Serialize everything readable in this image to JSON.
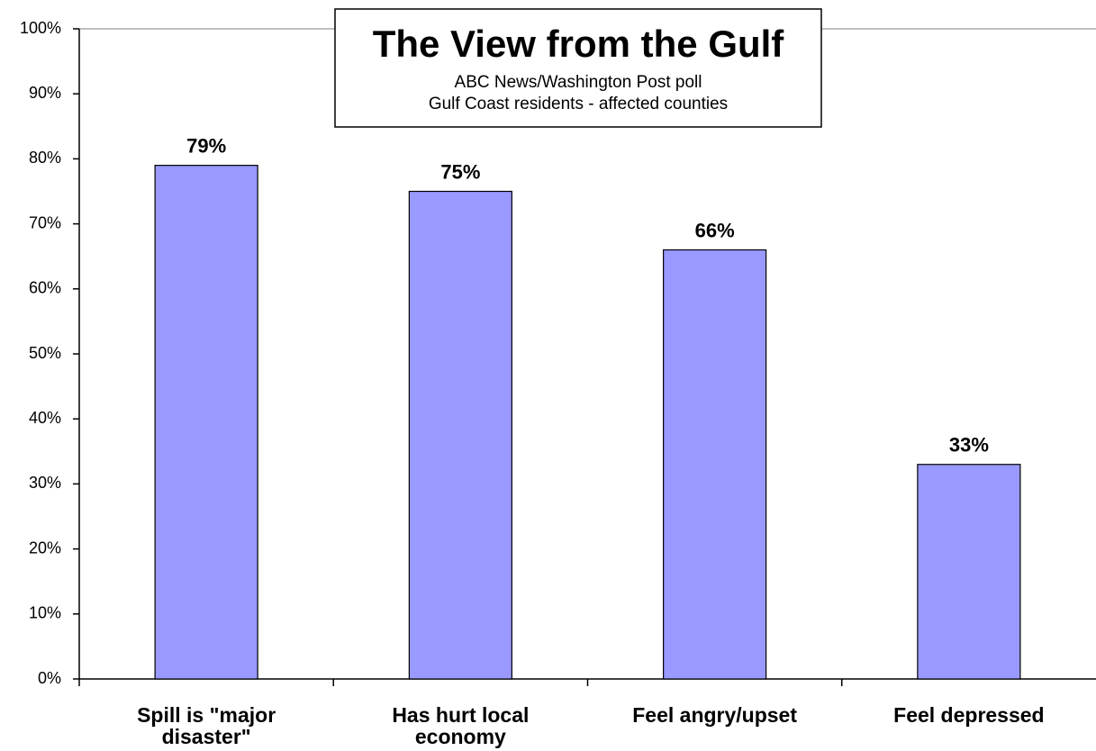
{
  "chart_data": {
    "type": "bar",
    "title": "The View from the Gulf",
    "subtitle": [
      "ABC News/Washington Post poll",
      "Gulf Coast residents - affected counties"
    ],
    "categories": [
      "Spill is \"major disaster\"",
      "Has hurt local economy",
      "Feel angry/upset",
      "Feel depressed"
    ],
    "values": [
      79,
      75,
      66,
      33
    ],
    "value_labels": [
      "79%",
      "75%",
      "66%",
      "33%"
    ],
    "color": "#9999ff",
    "ylim": [
      0,
      100
    ],
    "yticks": [
      {
        "value": 0,
        "label": "0%"
      },
      {
        "value": 10,
        "label": "10%"
      },
      {
        "value": 20,
        "label": "20%"
      },
      {
        "value": 30,
        "label": "30%"
      },
      {
        "value": 40,
        "label": "40%"
      },
      {
        "value": 50,
        "label": "50%"
      },
      {
        "value": 60,
        "label": "60%"
      },
      {
        "value": 70,
        "label": "70%"
      },
      {
        "value": 80,
        "label": "80%"
      },
      {
        "value": 90,
        "label": "90%"
      },
      {
        "value": 100,
        "label": "100%"
      }
    ],
    "grid": false
  }
}
